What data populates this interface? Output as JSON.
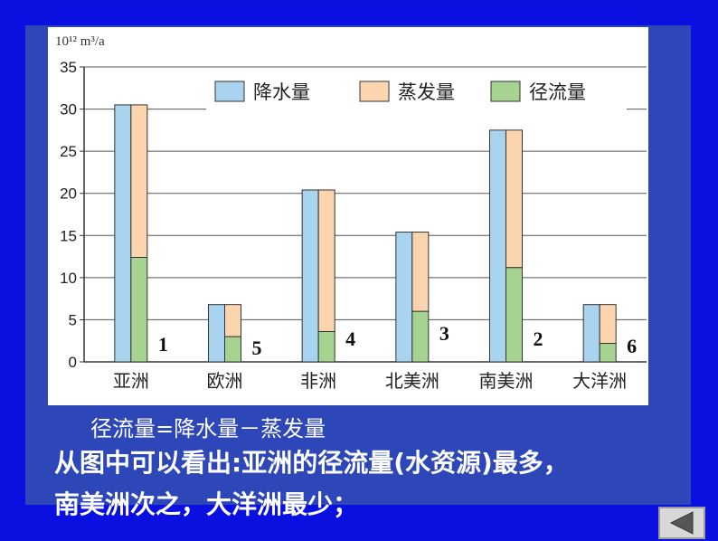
{
  "chart_data": {
    "type": "bar",
    "unit_label": "10¹² m³/a",
    "categories": [
      "亚洲",
      "欧洲",
      "非洲",
      "北美洲",
      "南美洲",
      "大洋洲"
    ],
    "series": [
      {
        "name": "降水量",
        "color": "#a8d4f0",
        "values": [
          30.5,
          6.8,
          20.4,
          15.4,
          27.5,
          6.8
        ]
      },
      {
        "name": "蒸发量",
        "color": "#fcd5ae",
        "values": [
          18.1,
          3.8,
          16.8,
          9.4,
          16.3,
          4.6
        ]
      },
      {
        "name": "径流量",
        "color": "#a6d38f",
        "values": [
          12.4,
          3.0,
          3.6,
          6.0,
          11.2,
          2.2
        ]
      }
    ],
    "ranks": [
      "1",
      "5",
      "4",
      "3",
      "2",
      "6"
    ],
    "ylim": [
      0,
      35
    ],
    "yticks": [
      0,
      5,
      10,
      15,
      20,
      25,
      30,
      35
    ],
    "grid": true,
    "legend_position": "top-right"
  },
  "text": {
    "formula": "径流量=降水量－蒸发量",
    "conclusion_line1": "从图中可以看出:亚洲的径流量(水资源)最多，",
    "conclusion_line2": "南美洲次之，大洋洲最少；"
  },
  "nav": {
    "back_icon": "triangle-left-icon"
  }
}
